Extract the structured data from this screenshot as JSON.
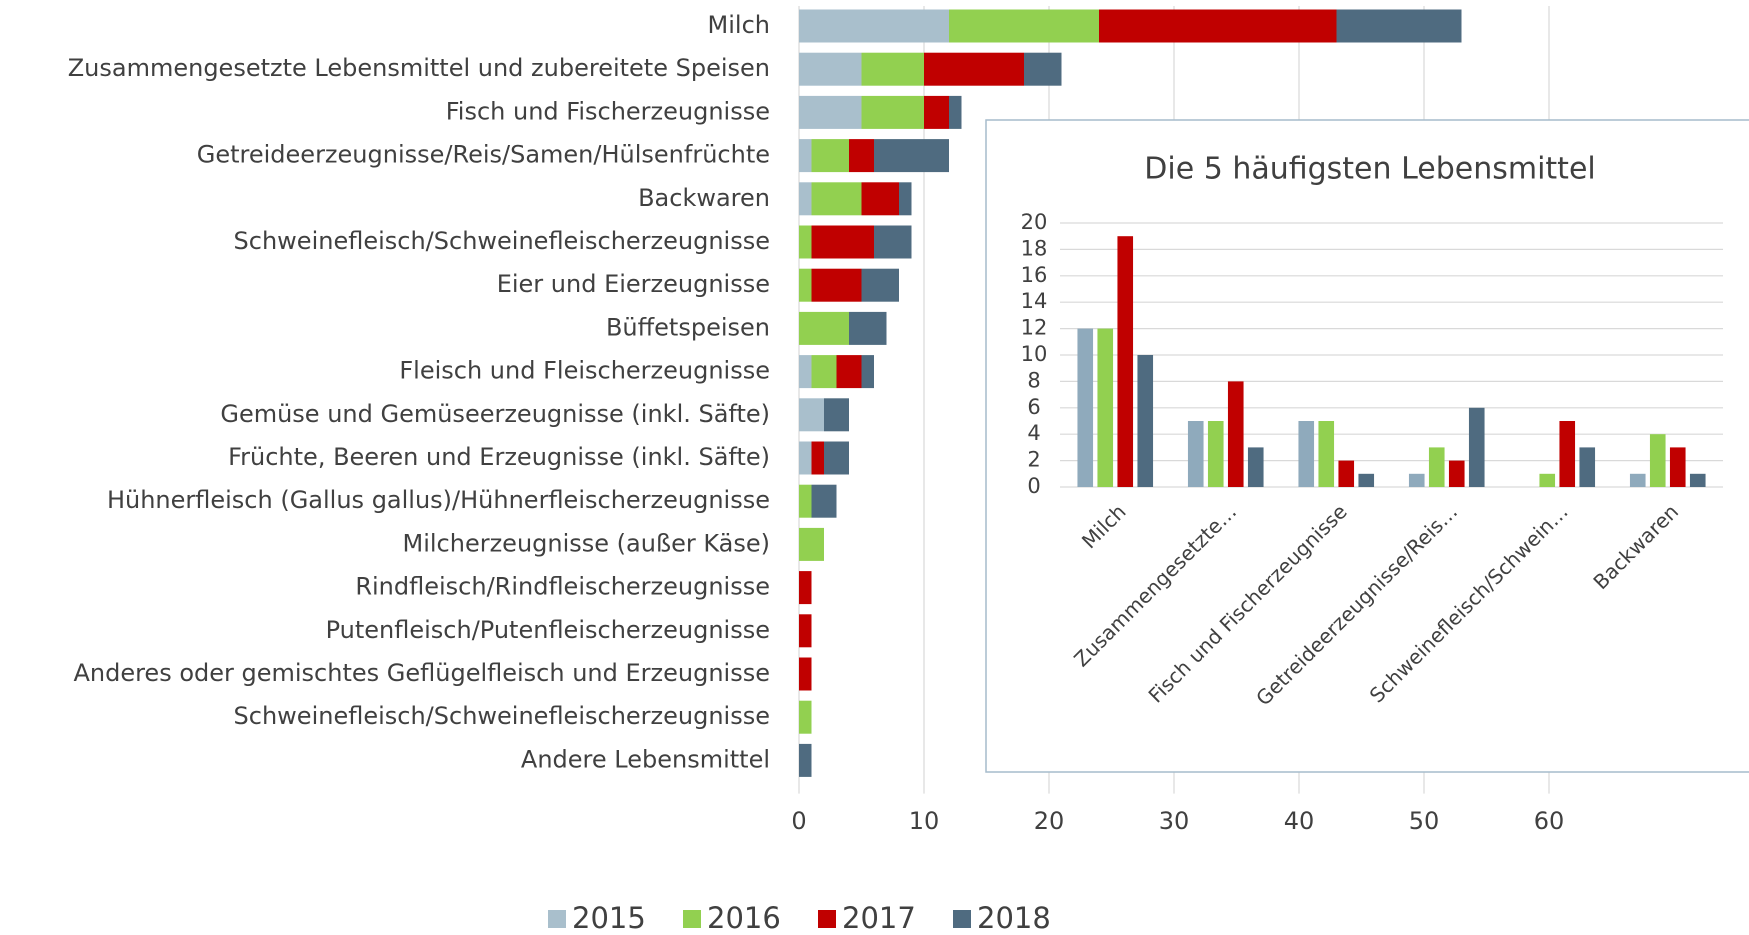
{
  "chart_data": [
    {
      "type": "stacked-bar-horizontal",
      "categories": [
        "Milch",
        "Zusammengesetzte Lebensmittel und zubereitete Speisen",
        "Fisch und Fischerzeugnisse",
        "Getreideerzeugnisse/Reis/Samen/Hülsenfrüchte",
        "Backwaren",
        "Schweinefleisch/Schweinefleischerzeugnisse",
        "Eier und Eierzeugnisse",
        "Büffetspeisen",
        "Fleisch und Fleischerzeugnisse",
        "Gemüse und Gemüseerzeugnisse (inkl. Säfte)",
        "Früchte, Beeren und Erzeugnisse (inkl. Säfte)",
        "Hühnerfleisch (Gallus gallus)/Hühnerfleischerzeugnisse",
        "Milcherzeugnisse (außer Käse)",
        "Rindfleisch/Rindfleischerzeugnisse",
        "Putenfleisch/Putenfleischerzeugnisse",
        "Anderes oder gemischtes Geflügelfleisch und Erzeugnisse",
        "Schweinefleisch/Schweinefleischerzeugnisse",
        "Andere Lebensmittel"
      ],
      "series": [
        {
          "name": "2015",
          "color": "#a9bfcc",
          "values": [
            12,
            5,
            5,
            1,
            1,
            0,
            0,
            0,
            1,
            2,
            1,
            0,
            0,
            0,
            0,
            0,
            0,
            0
          ]
        },
        {
          "name": "2016",
          "color": "#92d050",
          "values": [
            12,
            5,
            5,
            3,
            4,
            1,
            1,
            4,
            2,
            0,
            0,
            1,
            2,
            0,
            0,
            0,
            1,
            0
          ]
        },
        {
          "name": "2017",
          "color": "#c00000",
          "values": [
            19,
            8,
            2,
            2,
            3,
            5,
            4,
            0,
            2,
            0,
            1,
            0,
            0,
            1,
            1,
            1,
            0,
            0
          ]
        },
        {
          "name": "2018",
          "color": "#4f6b80",
          "values": [
            10,
            3,
            1,
            6,
            1,
            3,
            3,
            3,
            1,
            2,
            2,
            2,
            0,
            0,
            0,
            0,
            0,
            1
          ]
        }
      ],
      "xlim": [
        0,
        76
      ],
      "xticks": [
        0,
        10,
        20,
        30,
        40,
        50,
        60
      ],
      "grid": true,
      "legend": "bottom"
    },
    {
      "type": "bar",
      "title": "Die 5 häufigsten Lebensmittel",
      "categories": [
        "Milch",
        "Zusammengesetzte…",
        "Fisch und Fischerzeugnisse",
        "Getreideerzeugnisse/Reis…",
        "Schweinefleisch/Schwein…",
        "Backwaren"
      ],
      "series": [
        {
          "color": "#8faabc",
          "values": [
            12,
            5,
            5,
            1,
            0,
            1
          ]
        },
        {
          "color": "#92d050",
          "values": [
            12,
            5,
            5,
            3,
            1,
            4
          ]
        },
        {
          "color": "#c00000",
          "values": [
            19,
            8,
            2,
            2,
            5,
            3
          ]
        },
        {
          "color": "#4f6b80",
          "values": [
            10,
            3,
            1,
            6,
            3,
            1
          ]
        }
      ],
      "ylim": [
        0,
        20
      ],
      "yticks": [
        0,
        2,
        4,
        6,
        8,
        10,
        12,
        14,
        16,
        18,
        20
      ],
      "grid": true
    }
  ]
}
